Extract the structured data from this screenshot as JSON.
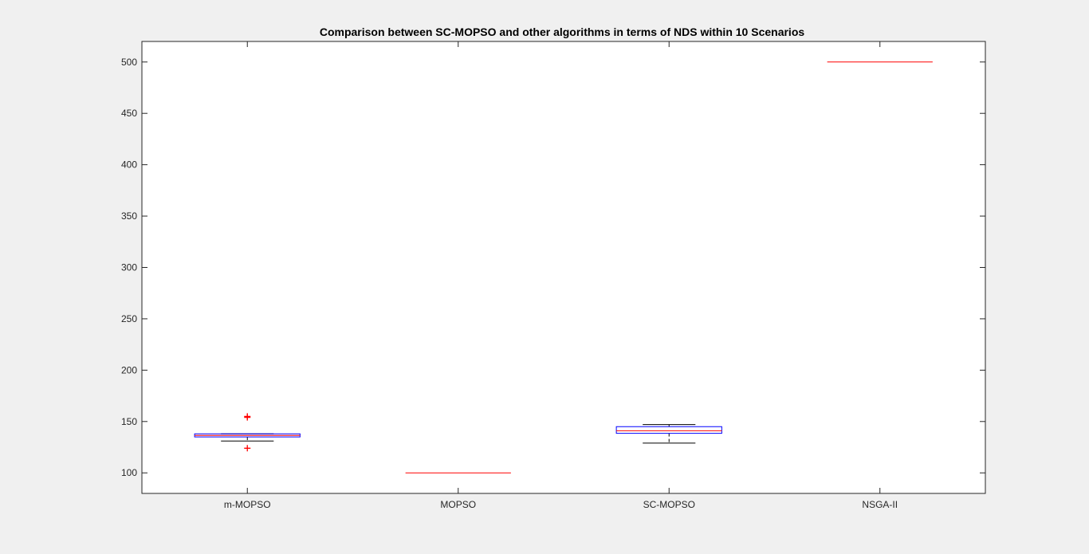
{
  "chart_data": {
    "type": "box",
    "title": "Comparison between SC-MOPSO and other algorithms in terms of NDS within 10 Scenarios",
    "xlabel": "",
    "ylabel": "",
    "ylim": [
      80,
      520
    ],
    "yticks": [
      100,
      150,
      200,
      250,
      300,
      350,
      400,
      450,
      500
    ],
    "ytick_labels": [
      "100",
      "150",
      "200",
      "250",
      "300",
      "350",
      "400",
      "450",
      "500"
    ],
    "categories": [
      "m-MOPSO",
      "MOPSO",
      "SC-MOPSO",
      "NSGA-II"
    ],
    "grid": false,
    "legend": "none",
    "boxes": [
      {
        "name": "m-MOPSO",
        "whisker_low": 131,
        "q1": 135,
        "median": 136.5,
        "q3": 138,
        "whisker_high": 138,
        "outliers": [
          154,
          155,
          124
        ]
      },
      {
        "name": "MOPSO",
        "whisker_low": 100,
        "q1": 100,
        "median": 100,
        "q3": 100,
        "whisker_high": 100,
        "outliers": []
      },
      {
        "name": "SC-MOPSO",
        "whisker_low": 129,
        "q1": 138.5,
        "median": 141,
        "q3": 145,
        "whisker_high": 147,
        "outliers": []
      },
      {
        "name": "NSGA-II",
        "whisker_low": 500,
        "q1": 500,
        "median": 500,
        "q3": 500,
        "whisker_high": 500,
        "outliers": []
      }
    ],
    "colors": {
      "box": "#0000ff",
      "median": "#ff0000",
      "whisker": "#000000",
      "outlier": "#ff0000",
      "axes_bg": "#ffffff",
      "figure_bg": "#f0f0f0",
      "axis": "#262626"
    }
  }
}
